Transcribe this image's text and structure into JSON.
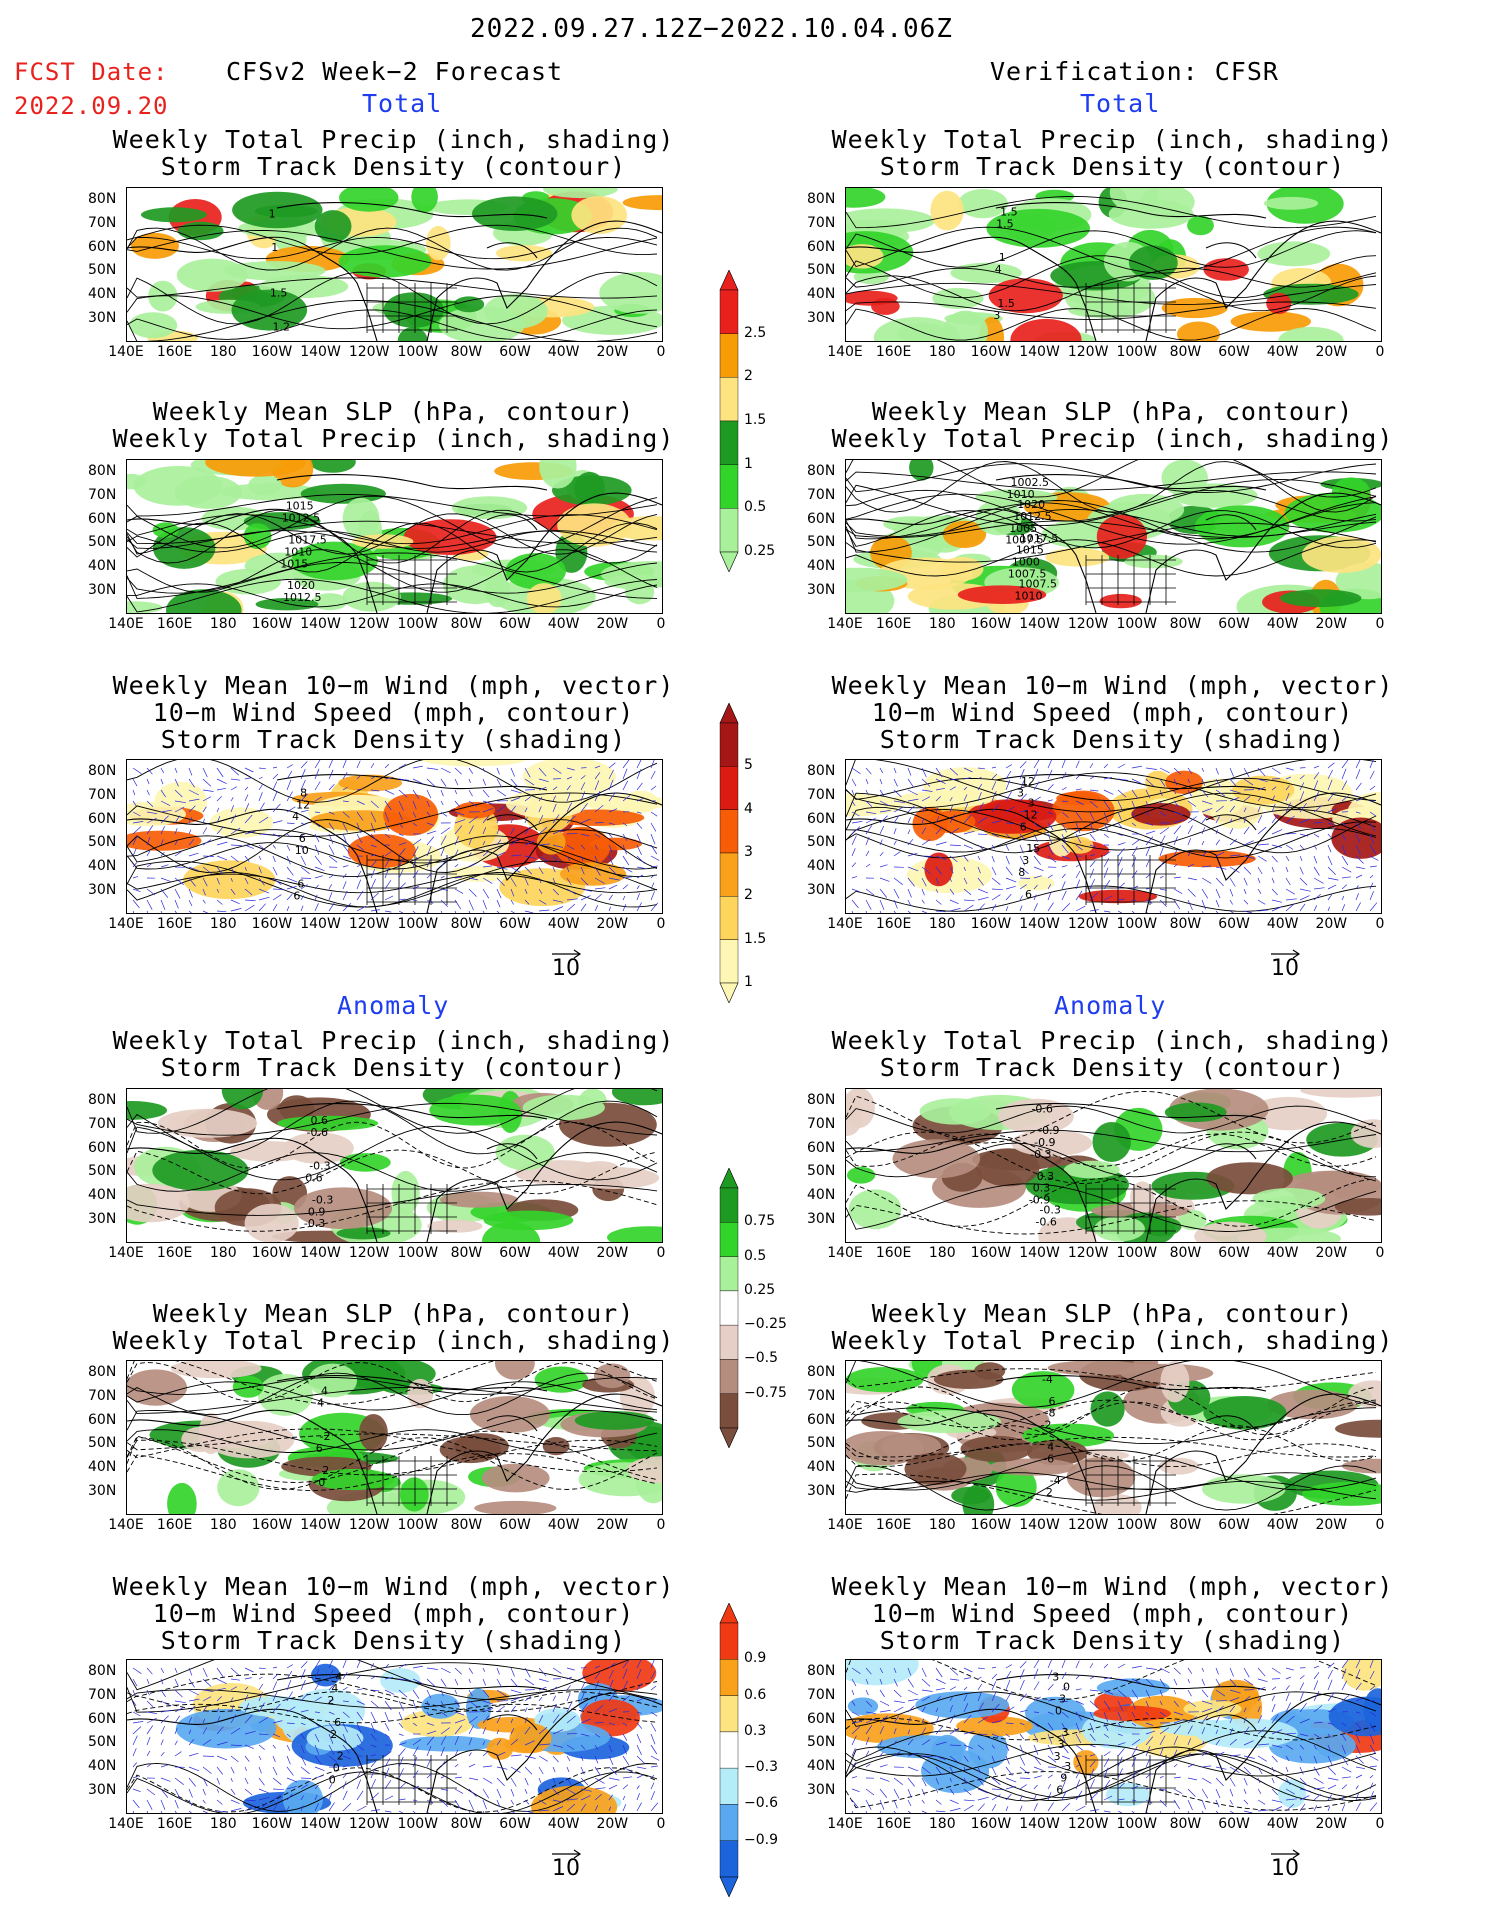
{
  "header": {
    "date_range": "2022.09.27.12Z−2022.10.04.06Z",
    "fcst_label": "FCST Date:",
    "fcst_date": "2022.09.20",
    "left_title": "CFSv2 Week−2 Forecast",
    "right_title": "Verification: CFSR",
    "total": "Total",
    "anomaly": "Anomaly"
  },
  "panels": {
    "precip_storm": [
      "Weekly Total Precip (inch, shading)",
      "Storm Track Density (contour)"
    ],
    "slp_precip": [
      "Weekly Mean SLP (hPa, contour)",
      "Weekly Total Precip (inch, shading)"
    ],
    "wind_storm": [
      "Weekly Mean 10−m Wind (mph, vector)",
      "10−m Wind Speed (mph, contour)",
      "Storm Track Density (shading)"
    ]
  },
  "axes": {
    "lat": [
      "80N",
      "70N",
      "60N",
      "50N",
      "40N",
      "30N"
    ],
    "lon": [
      "140E",
      "160E",
      "180",
      "160W",
      "140W",
      "120W",
      "100W",
      "80W",
      "60W",
      "40W",
      "20W",
      "0"
    ]
  },
  "vector_ref": "10",
  "colorbars": {
    "precip_total": {
      "labels": [
        "2.5",
        "2",
        "1.5",
        "1",
        "0.5",
        "0.25"
      ],
      "colors": [
        "#e8211d",
        "#f79b07",
        "#fde480",
        "#1e9a23",
        "#33d42a",
        "#a9f09b"
      ]
    },
    "storm_total": {
      "labels": [
        "5",
        "4",
        "3",
        "2",
        "1.5",
        "1"
      ],
      "colors": [
        "#a41716",
        "#dc1c12",
        "#f75c07",
        "#f9a11b",
        "#fdd55c",
        "#fdf6b4"
      ]
    },
    "precip_anom": {
      "labels": [
        "0.75",
        "0.5",
        "0.25",
        "−0.25",
        "−0.5",
        "−0.75"
      ],
      "colors": [
        "#1e9a23",
        "#33d42a",
        "#a9f09b",
        "#ffffff",
        "#e6cfc6",
        "#b58d7f",
        "#7a4d3c"
      ]
    },
    "storm_anom": {
      "labels": [
        "0.9",
        "0.6",
        "0.3",
        "−0.3",
        "−0.6",
        "−0.9"
      ],
      "colors": [
        "#f03a13",
        "#f9a11b",
        "#fde480",
        "#ffffff",
        "#b4ecf8",
        "#5aa9f0",
        "#1c64dc"
      ]
    }
  },
  "contour_labels": {
    "fp_total": [
      "1",
      "1.5",
      "1",
      "1.2"
    ],
    "fs_total": [
      "1015",
      "1012.5",
      "1012.5",
      "1010",
      "1015",
      "1020",
      "1017.5"
    ],
    "fw_total": [
      "4",
      "6",
      "10",
      "12",
      "6",
      "6",
      "8"
    ],
    "vp_total": [
      "3",
      "4",
      "1.5",
      "1.5",
      "1",
      "1.5"
    ],
    "vs_total": [
      "1007.5",
      "1010",
      "1007.5",
      "1005",
      "1002.5",
      "1000",
      "1012.5",
      "1010",
      "1015",
      "1020",
      "1007.5",
      "1017.5"
    ],
    "vw_total": [
      "3",
      "8",
      "6",
      "12",
      "3",
      "12",
      "6",
      "15",
      "3"
    ],
    "fp_anom": [
      "-0.3",
      "0.6",
      "-0.6",
      "0.9",
      "-0.3",
      "0.6",
      "-0.3"
    ],
    "fs_anom": [
      "6",
      "4",
      "0",
      "-2",
      "4",
      "2"
    ],
    "fw_anom": [
      "2",
      "0",
      "2",
      "4",
      "0",
      "6",
      "4",
      "2"
    ],
    "vp_anom": [
      "-0.9",
      "-0.3",
      "-0.6",
      "0.3",
      "-0.9",
      "-0.6",
      "0.3",
      "-0.9",
      "-0.3"
    ],
    "vs_anom": [
      "-2",
      "-4",
      "-6",
      "-8",
      "2",
      "4",
      "6",
      "-4"
    ],
    "vw_anom": [
      "3",
      "3",
      "0",
      "6",
      "3",
      "3",
      "9",
      "3",
      "0",
      "3"
    ]
  }
}
